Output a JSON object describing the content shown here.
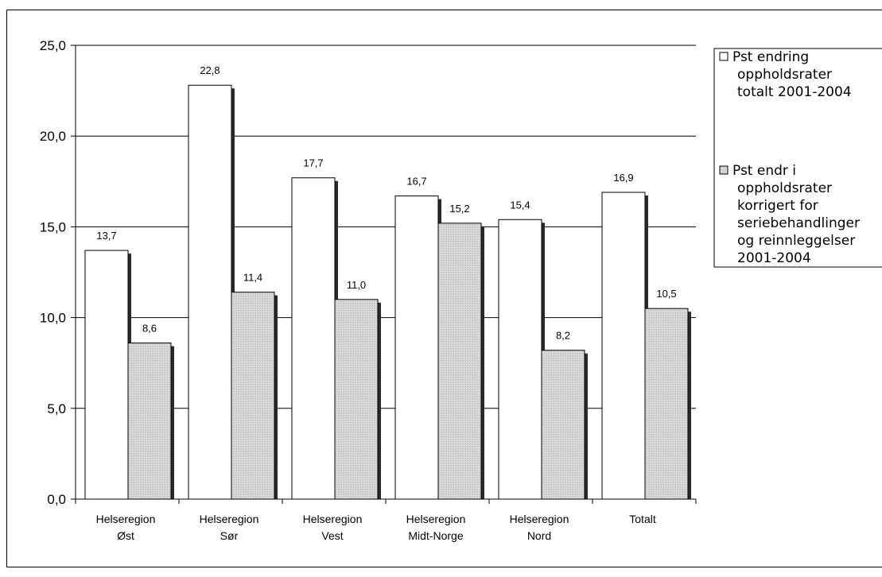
{
  "chart_data": {
    "type": "bar",
    "categories": [
      [
        "Helseregion",
        "Øst"
      ],
      [
        "Helseregion",
        "Sør"
      ],
      [
        "Helseregion",
        "Vest"
      ],
      [
        "Helseregion",
        "Midt-Norge"
      ],
      [
        "Helseregion",
        "Nord"
      ],
      [
        "Totalt"
      ]
    ],
    "series": [
      {
        "name": [
          "Pst endring",
          "oppholdsrater",
          "totalt 2001-2004"
        ],
        "values": [
          13.7,
          22.8,
          17.7,
          16.7,
          15.4,
          16.9
        ],
        "labels": [
          "13,7",
          "22,8",
          "17,7",
          "16,7",
          "15,4",
          "16,9"
        ],
        "color": "#ffffff"
      },
      {
        "name": [
          "Pst endr i",
          "oppholdsrater",
          "korrigert for",
          "seriebehandlinger",
          "og reinnleggelser",
          "2001-2004"
        ],
        "values": [
          8.6,
          11.4,
          11.0,
          15.2,
          8.2,
          10.5
        ],
        "labels": [
          "8,6",
          "11,4",
          "11,0",
          "15,2",
          "8,2",
          "10,5"
        ],
        "color": "#d2d2d2"
      }
    ],
    "yticks": [
      "0,0",
      "5,0",
      "10,0",
      "15,0",
      "20,0",
      "25,0"
    ],
    "ylim": [
      0,
      25
    ],
    "grid": true,
    "legend_position": "right",
    "title": "",
    "xlabel": "",
    "ylabel": ""
  }
}
